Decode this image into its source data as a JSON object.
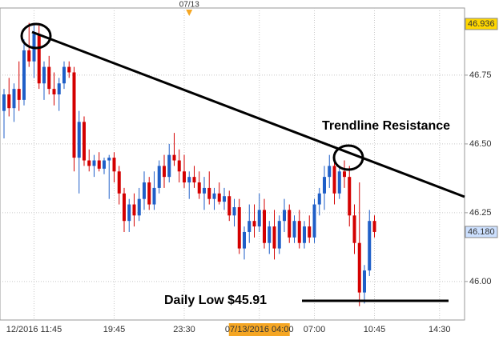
{
  "chart_data": {
    "type": "candlestick",
    "annotations": {
      "trendline": "Trendline Resistance",
      "daily_low": "Daily Low $45.91"
    },
    "categories": [
      null,
      null,
      null,
      null,
      null,
      null,
      "12/2016 11:45",
      null,
      null,
      null,
      null,
      null,
      null,
      null,
      null,
      null,
      null,
      null,
      null,
      null,
      null,
      null,
      "19:45",
      null,
      null,
      null,
      null,
      null,
      null,
      null,
      null,
      null,
      null,
      null,
      null,
      null,
      "23:30",
      null,
      null,
      null,
      null,
      null,
      null,
      null,
      null,
      null,
      null,
      null,
      null,
      null,
      null,
      "07/13/2016 04:00",
      null,
      null,
      null,
      null,
      null,
      null,
      null,
      null,
      null,
      null,
      "07:00",
      null,
      null,
      null,
      null,
      null,
      null,
      null,
      null,
      null,
      null,
      null,
      "10:45",
      null,
      null,
      null,
      null,
      null,
      null,
      null,
      null,
      null,
      null,
      null,
      null,
      "14:30"
    ],
    "highlighted_category": "07/13/2016 04:00",
    "top_categories": [
      null,
      null,
      null,
      null,
      null,
      null,
      null,
      null,
      null,
      null,
      null,
      null,
      null,
      null,
      null,
      null,
      null,
      null,
      null,
      null,
      null,
      null,
      null,
      null,
      null,
      null,
      null,
      null,
      null,
      null,
      null,
      null,
      null,
      null,
      null,
      null,
      null,
      "07/13",
      null,
      null,
      null,
      null,
      null,
      null,
      null,
      null,
      null,
      null,
      null,
      null,
      null,
      null,
      null,
      null,
      null,
      null,
      null,
      null,
      null,
      null,
      null,
      null,
      null,
      null,
      null,
      null,
      null,
      null,
      null,
      null,
      null,
      null,
      null,
      null,
      null,
      null,
      null,
      null,
      null,
      null,
      null,
      null,
      null,
      null,
      null,
      null,
      null,
      null
    ],
    "open": [
      46.62,
      46.68,
      46.63,
      46.7,
      46.66,
      46.84,
      46.8,
      46.9,
      46.72,
      46.78,
      46.7,
      46.68,
      46.72,
      46.78,
      46.76,
      46.45,
      46.58,
      46.44,
      46.42,
      46.44,
      46.41,
      46.44,
      46.45,
      46.4,
      46.32,
      46.22,
      46.28,
      46.24,
      46.3,
      46.36,
      46.28,
      46.34,
      46.42,
      46.38,
      46.46,
      46.44,
      46.4,
      46.36,
      46.38,
      46.36,
      46.32,
      46.34,
      46.3,
      46.32,
      46.29,
      46.31,
      46.24,
      46.27,
      46.12,
      46.18,
      46.22,
      46.2,
      46.26,
      46.14,
      46.2,
      46.12,
      46.22,
      46.26,
      46.16,
      46.22,
      46.14,
      46.2,
      46.16,
      46.28,
      46.32,
      46.38,
      46.42,
      46.32,
      46.4,
      46.38,
      46.24,
      46.14,
      45.96,
      46.04,
      46.22,
      null,
      null,
      null,
      null,
      null,
      null,
      null,
      null,
      null,
      null,
      null,
      null,
      null
    ],
    "high": [
      46.7,
      46.74,
      46.72,
      46.8,
      46.88,
      46.94,
      46.936,
      46.93,
      46.8,
      46.82,
      46.76,
      46.74,
      46.8,
      46.8,
      46.78,
      46.62,
      46.6,
      46.48,
      46.46,
      46.47,
      46.45,
      46.46,
      46.47,
      46.42,
      46.34,
      46.3,
      46.32,
      46.34,
      46.4,
      46.38,
      46.4,
      46.44,
      46.46,
      46.5,
      46.54,
      46.48,
      46.46,
      46.4,
      46.42,
      46.4,
      46.38,
      46.4,
      46.34,
      46.36,
      46.34,
      46.33,
      46.3,
      46.3,
      46.2,
      46.28,
      46.28,
      46.32,
      46.3,
      46.22,
      46.26,
      46.24,
      46.3,
      46.28,
      46.24,
      46.26,
      46.22,
      46.24,
      46.3,
      46.34,
      46.42,
      46.46,
      46.46,
      46.42,
      46.44,
      46.42,
      46.28,
      46.36,
      46.06,
      46.26,
      46.24,
      null,
      null,
      null,
      null,
      null,
      null,
      null,
      null,
      null,
      null,
      null,
      null,
      null
    ],
    "low": [
      46.52,
      46.6,
      46.58,
      46.62,
      46.64,
      46.78,
      46.74,
      46.7,
      46.66,
      46.68,
      46.64,
      46.62,
      46.7,
      46.74,
      46.4,
      46.32,
      46.42,
      46.4,
      46.38,
      46.4,
      46.39,
      46.3,
      46.36,
      46.28,
      46.18,
      46.18,
      46.2,
      46.22,
      46.26,
      46.26,
      46.26,
      46.32,
      46.34,
      46.36,
      46.42,
      46.36,
      46.34,
      46.3,
      46.34,
      46.3,
      46.26,
      46.28,
      46.26,
      46.28,
      46.26,
      46.22,
      46.2,
      46.1,
      46.08,
      46.14,
      46.16,
      46.18,
      46.12,
      46.1,
      46.08,
      46.1,
      46.18,
      46.14,
      46.14,
      46.12,
      46.12,
      46.14,
      46.14,
      46.24,
      46.26,
      46.34,
      46.28,
      46.3,
      46.34,
      46.2,
      46.1,
      45.91,
      45.92,
      46.02,
      46.16,
      null,
      null,
      null,
      null,
      null,
      null,
      null,
      null,
      null,
      null,
      null,
      null,
      null
    ],
    "close": [
      46.68,
      46.63,
      46.7,
      46.66,
      46.84,
      46.8,
      46.9,
      46.72,
      46.78,
      46.7,
      46.68,
      46.72,
      46.78,
      46.76,
      46.45,
      46.58,
      46.44,
      46.42,
      46.44,
      46.41,
      46.44,
      46.45,
      46.4,
      46.32,
      46.22,
      46.28,
      46.24,
      46.3,
      46.36,
      46.28,
      46.34,
      46.42,
      46.38,
      46.46,
      46.44,
      46.4,
      46.36,
      46.38,
      46.36,
      46.32,
      46.34,
      46.3,
      46.32,
      46.29,
      46.31,
      46.24,
      46.27,
      46.12,
      46.18,
      46.22,
      46.2,
      46.26,
      46.14,
      46.2,
      46.12,
      46.22,
      46.26,
      46.16,
      46.22,
      46.14,
      46.2,
      46.16,
      46.28,
      46.32,
      46.38,
      46.42,
      46.32,
      46.4,
      46.38,
      46.24,
      46.14,
      45.96,
      46.04,
      46.22,
      46.18,
      null,
      null,
      null,
      null,
      null,
      null,
      null,
      null,
      null,
      null,
      null,
      null,
      null
    ],
    "up_color": "#1f5fc8",
    "down_color": "#d40000",
    "ylim": [
      45.86,
      46.994
    ],
    "yticks": [
      {
        "value": 46,
        "label": "46.00"
      },
      46.25,
      {
        "value": 46.5,
        "label": "46.50"
      },
      46.75
    ],
    "price_markers": [
      {
        "value": 46.936,
        "color": "#ffd700"
      },
      {
        "value": 46.18,
        "label": "46.180",
        "color": "#cce0ff"
      }
    ],
    "grid": true
  }
}
